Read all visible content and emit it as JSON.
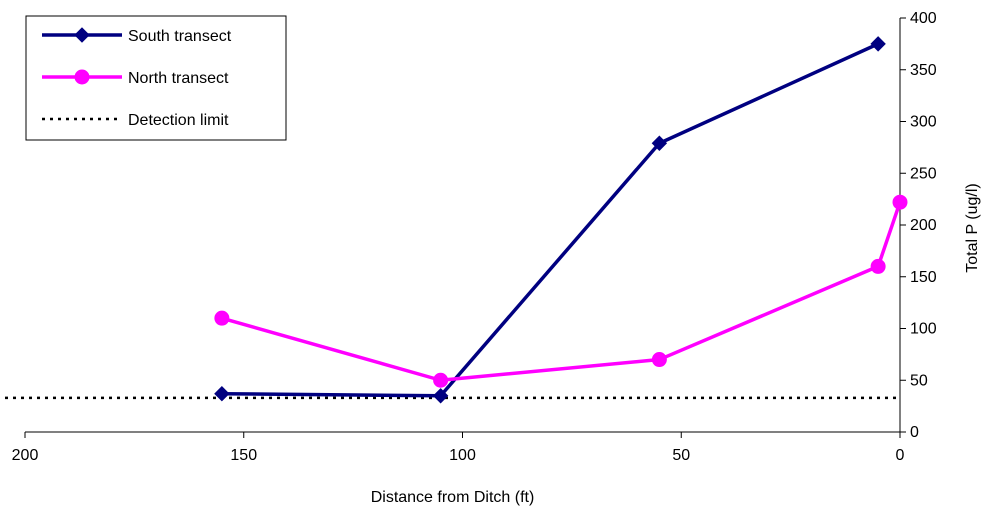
{
  "chart_data": {
    "type": "line",
    "title": "",
    "xlabel": "Distance from Ditch (ft)",
    "ylabel": "Total P (ug/l)",
    "xlim": [
      200,
      0
    ],
    "ylim": [
      0,
      400
    ],
    "x_reversed": true,
    "y_axis_side": "right",
    "xticks": [
      200,
      150,
      100,
      50,
      0
    ],
    "yticks": [
      0,
      50,
      100,
      150,
      200,
      250,
      300,
      350,
      400
    ],
    "grid": false,
    "legend_position": "top-left",
    "series": [
      {
        "name": "South transect",
        "color": "#000080",
        "marker": "diamond",
        "points": [
          [
            155,
            37
          ],
          [
            105,
            35
          ],
          [
            55,
            279
          ],
          [
            5,
            375
          ]
        ]
      },
      {
        "name": "North transect",
        "color": "#ff00ff",
        "marker": "circle",
        "points": [
          [
            155,
            110
          ],
          [
            105,
            50
          ],
          [
            55,
            70
          ],
          [
            5,
            160
          ],
          [
            0,
            222
          ]
        ]
      }
    ],
    "reference_lines": [
      {
        "name": "Detection limit",
        "y": 33,
        "color": "#000000",
        "style": "dotted"
      }
    ]
  }
}
